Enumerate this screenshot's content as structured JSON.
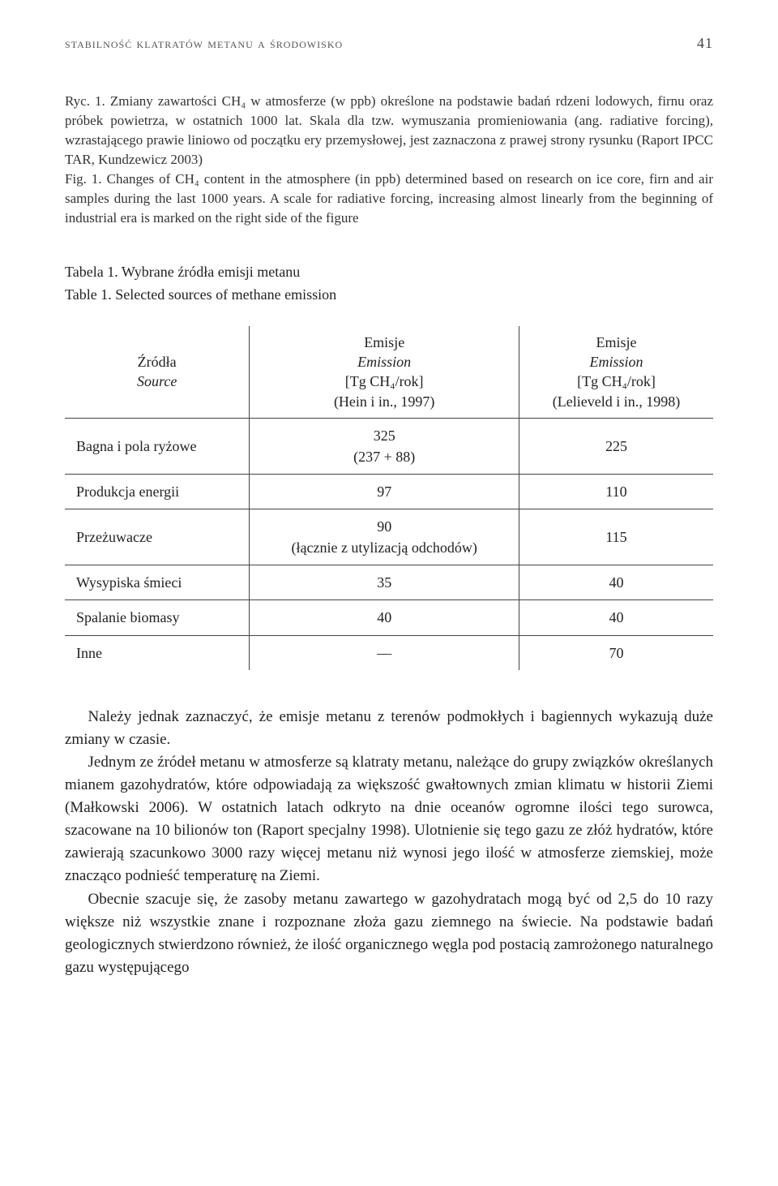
{
  "page": {
    "running_title": "stabilność klatratów metanu a środowisko",
    "number": "41"
  },
  "caption": {
    "pl": "Ryc. 1. Zmiany zawartości CH₄ w atmosferze (w ppb) określone na podstawie badań rdzeni lodowych, firnu oraz próbek powietrza, w ostatnich 1000 lat. Skala dla tzw. wymuszania promieniowania (ang. radiative forcing), wzrastającego prawie liniowo od początku ery przemysłowej, jest zaznaczona z prawej strony rysunku (Raport IPCC TAR, Kundzewicz 2003)",
    "en": "Fig. 1. Changes of CH₄ content in the atmosphere (in ppb) determined based on research on ice core, firn and air samples during the last 1000 years. A scale for radiative forcing, increasing almost linearly from the beginning of industrial era is marked on the right side of the figure"
  },
  "table": {
    "title_pl": "Tabela 1. Wybrane źródła emisji metanu",
    "title_en": "Table 1. Selected sources of methane emission",
    "headers": {
      "source_pl": "Źródła",
      "source_en": "Source",
      "col1_l1": "Emisje",
      "col1_l2": "Emission",
      "col1_l3": "[Tg CH₄/rok]",
      "col1_l4": "(Hein i in., 1997)",
      "col2_l1": "Emisje",
      "col2_l2": "Emission",
      "col2_l3": "[Tg CH₄/rok]",
      "col2_l4": "(Lelieveld i in., 1998)"
    },
    "rows": [
      {
        "src": "Bagna i pola ryżowe",
        "c1": "325\n(237 + 88)",
        "c2": "225"
      },
      {
        "src": "Produkcja energii",
        "c1": "97",
        "c2": "110"
      },
      {
        "src": "Przeżuwacze",
        "c1": "90\n(łącznie z utylizacją odchodów)",
        "c2": "115"
      },
      {
        "src": "Wysypiska śmieci",
        "c1": "35",
        "c2": "40"
      },
      {
        "src": "Spalanie biomasy",
        "c1": "40",
        "c2": "40"
      },
      {
        "src": "Inne",
        "c1": "—",
        "c2": "70"
      }
    ]
  },
  "body": {
    "p1": "Należy jednak zaznaczyć, że emisje metanu z terenów podmokłych i bagiennych wykazują duże zmiany w czasie.",
    "p2": "Jednym ze źródeł metanu w atmosferze są klatraty metanu, należące do grupy związków określanych mianem gazohydratów, które odpowiadają za większość gwałtownych zmian klimatu w historii Ziemi (Małkowski 2006). W ostatnich latach odkryto na dnie oceanów ogromne ilości tego surowca, szacowane na 10 bilionów ton (Raport specjalny 1998). Ulotnienie się tego gazu ze złóż hydratów, które zawierają szacunkowo 3000 razy więcej metanu niż wynosi jego ilość w atmosferze ziemskiej, może znacząco podnieść temperaturę na Ziemi.",
    "p3": "Obecnie szacuje się, że zasoby metanu zawartego w gazohydratach mogą być od 2,5 do 10 razy większe niż wszystkie znane i rozpoznane złoża gazu ziemnego na świecie. Na podstawie badań geologicznych stwierdzono również, że ilość organicznego węgla pod postacią zamrożonego naturalnego gazu występującego"
  }
}
